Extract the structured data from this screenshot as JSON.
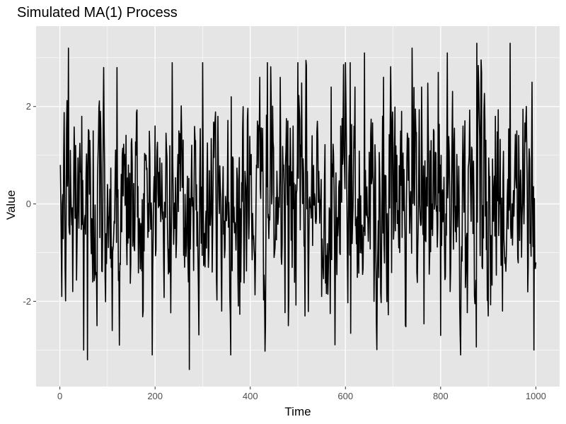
{
  "chart_data": {
    "type": "line",
    "title": "Simulated MA(1) Process",
    "xlabel": "Time",
    "ylabel": "Value",
    "xlim": [
      -50,
      1050
    ],
    "ylim": [
      -3.75,
      3.65
    ],
    "x_ticks": [
      0,
      200,
      400,
      600,
      800,
      1000
    ],
    "x_tick_labels": [
      "0",
      "200",
      "400",
      "600",
      "800",
      "1000"
    ],
    "y_ticks": [
      -2,
      0,
      2
    ],
    "y_tick_labels": [
      "-2",
      "0",
      "2"
    ],
    "grid": true,
    "panel_background": "#e5e5e5",
    "grid_color": "#ffffff",
    "line_color": "#000000",
    "series": [
      {
        "x_start": 1,
        "x_step": 1,
        "n_points": 1000,
        "x_key": [
          1,
          4,
          8,
          13,
          18,
          22,
          27,
          33,
          40,
          46,
          50,
          55,
          58,
          62,
          70,
          78,
          85,
          92,
          100,
          110,
          120,
          125,
          135,
          145,
          160,
          175,
          180,
          200,
          215,
          230,
          236,
          250,
          262,
          270,
          272,
          285,
          300,
          320,
          340,
          360,
          380,
          400,
          420,
          436,
          450,
          470,
          480,
          490,
          500,
          515,
          530,
          550,
          570,
          590,
          600,
          610,
          620,
          640,
          660,
          680,
          700,
          718,
          726,
          740,
          760,
          780,
          795,
          800,
          820,
          840,
          860,
          876,
          890,
          900,
          915,
          930,
          946,
          960,
          980,
          992,
          996,
          1000
        ],
        "y_key": [
          0.8,
          -1.9,
          1.0,
          -0.7,
          3.2,
          1.1,
          -1.8,
          1.2,
          -0.5,
          1.8,
          -3.0,
          0.6,
          -3.2,
          0.2,
          1.5,
          -2.5,
          1.9,
          2.8,
          0.4,
          -2.6,
          2.8,
          -2.9,
          0.8,
          -0.7,
          1.0,
          -2.2,
          0.9,
          1.6,
          0.2,
          -1.4,
          2.9,
          1.5,
          -1.3,
          -1.6,
          -3.4,
          1.3,
          2.9,
          -1.4,
          -2.2,
          2.2,
          -1.6,
          0.6,
          2.6,
          2.9,
          -1.1,
          0.8,
          -2.5,
          1.6,
          2.9,
          -2.3,
          1.4,
          -1.9,
          2.4,
          1.6,
          2.9,
          2.9,
          2.4,
          3.1,
          -2.0,
          2.6,
          1.2,
          1.9,
          -2.5,
          3.2,
          2.4,
          1.3,
          2.7,
          -2.7,
          -1.8,
          -2.1,
          1.0,
          3.3,
          -0.7,
          -2.3,
          1.8,
          -2.2,
          3.3,
          1.5,
          2.0,
          2.5,
          -3.0,
          -1.2
        ],
        "values_note": ""
      }
    ]
  }
}
